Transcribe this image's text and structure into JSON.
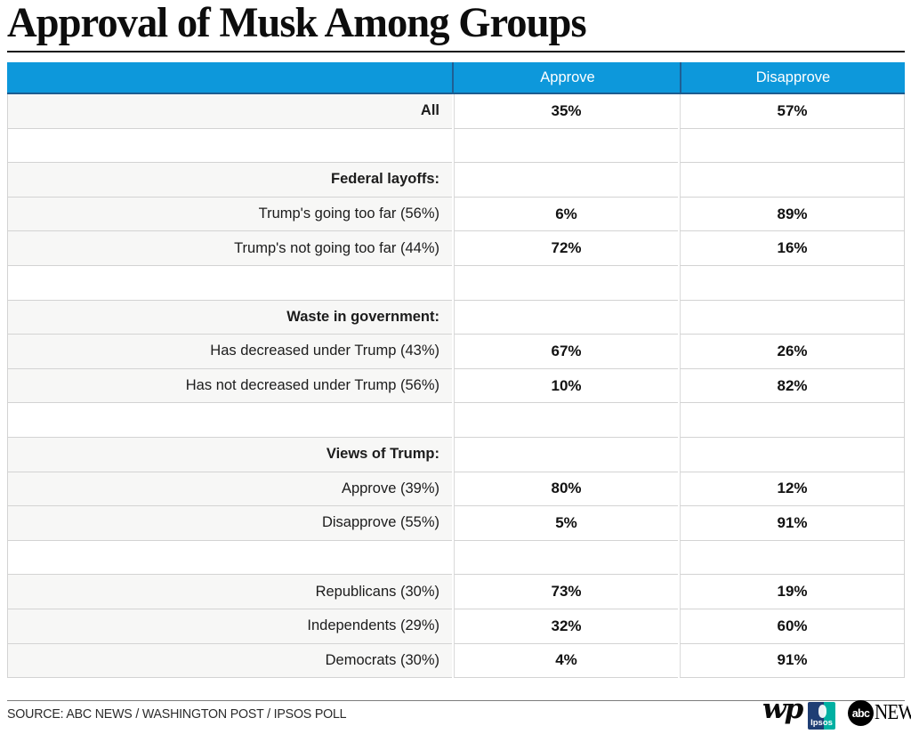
{
  "title": "Approval of Musk Among Groups",
  "table": {
    "columns": [
      "Approve",
      "Disapprove"
    ],
    "rows": [
      {
        "type": "data bold",
        "label": "All",
        "approve": "35%",
        "disapprove": "57%"
      },
      {
        "type": "spacer",
        "label": "",
        "approve": "",
        "disapprove": ""
      },
      {
        "type": "section",
        "label": "Federal layoffs:",
        "approve": "",
        "disapprove": ""
      },
      {
        "type": "data",
        "label": "Trump's going too far (56%)",
        "approve": "6%",
        "disapprove": "89%"
      },
      {
        "type": "data",
        "label": "Trump's not going too far (44%)",
        "approve": "72%",
        "disapprove": "16%"
      },
      {
        "type": "spacer",
        "label": "",
        "approve": "",
        "disapprove": ""
      },
      {
        "type": "section",
        "label": "Waste in government:",
        "approve": "",
        "disapprove": ""
      },
      {
        "type": "data",
        "label": "Has decreased under Trump (43%)",
        "approve": "67%",
        "disapprove": "26%"
      },
      {
        "type": "data",
        "label": "Has not decreased under Trump (56%)",
        "approve": "10%",
        "disapprove": "82%"
      },
      {
        "type": "spacer",
        "label": "",
        "approve": "",
        "disapprove": ""
      },
      {
        "type": "section",
        "label": "Views of Trump:",
        "approve": "",
        "disapprove": ""
      },
      {
        "type": "data",
        "label": "Approve (39%)",
        "approve": "80%",
        "disapprove": "12%"
      },
      {
        "type": "data",
        "label": "Disapprove (55%)",
        "approve": "5%",
        "disapprove": "91%"
      },
      {
        "type": "spacer",
        "label": "",
        "approve": "",
        "disapprove": ""
      },
      {
        "type": "data",
        "label": "Republicans (30%)",
        "approve": "73%",
        "disapprove": "19%"
      },
      {
        "type": "data",
        "label": "Independents (29%)",
        "approve": "32%",
        "disapprove": "60%"
      },
      {
        "type": "data",
        "label": "Democrats (30%)",
        "approve": "4%",
        "disapprove": "91%"
      }
    ]
  },
  "footer": {
    "source": "SOURCE: ABC NEWS / WASHINGTON POST / IPSOS POLL",
    "logos": {
      "wp": "wp",
      "ipsos": "Ipsos",
      "abc_circle": "abc",
      "abc_news": "NEWS"
    }
  },
  "colors": {
    "header_blue": "#0d98db",
    "header_divider": "#1f5f94",
    "label_cell_bg": "#f7f7f6",
    "grid_border": "#d3d3d3",
    "ipsos_blue": "#1f3e74",
    "ipsos_teal": "#00b0a2"
  },
  "chart_data": {
    "type": "table",
    "title": "Approval of Musk Among Groups",
    "columns": [
      "Approve",
      "Disapprove"
    ],
    "groups": [
      {
        "section": null,
        "rows": [
          {
            "label": "All",
            "approve": 35,
            "disapprove": 57
          }
        ]
      },
      {
        "section": "Federal layoffs:",
        "rows": [
          {
            "label": "Trump's going too far (56%)",
            "approve": 6,
            "disapprove": 89
          },
          {
            "label": "Trump's not going too far (44%)",
            "approve": 72,
            "disapprove": 16
          }
        ]
      },
      {
        "section": "Waste in government:",
        "rows": [
          {
            "label": "Has decreased under Trump (43%)",
            "approve": 67,
            "disapprove": 26
          },
          {
            "label": "Has not decreased under Trump (56%)",
            "approve": 10,
            "disapprove": 82
          }
        ]
      },
      {
        "section": "Views of Trump:",
        "rows": [
          {
            "label": "Approve (39%)",
            "approve": 80,
            "disapprove": 12
          },
          {
            "label": "Disapprove (55%)",
            "approve": 5,
            "disapprove": 91
          }
        ]
      },
      {
        "section": null,
        "rows": [
          {
            "label": "Republicans (30%)",
            "approve": 73,
            "disapprove": 19
          },
          {
            "label": "Independents (29%)",
            "approve": 32,
            "disapprove": 60
          },
          {
            "label": "Democrats (30%)",
            "approve": 4,
            "disapprove": 91
          }
        ]
      }
    ],
    "units": "percent",
    "source": "ABC NEWS / WASHINGTON POST / IPSOS POLL"
  }
}
